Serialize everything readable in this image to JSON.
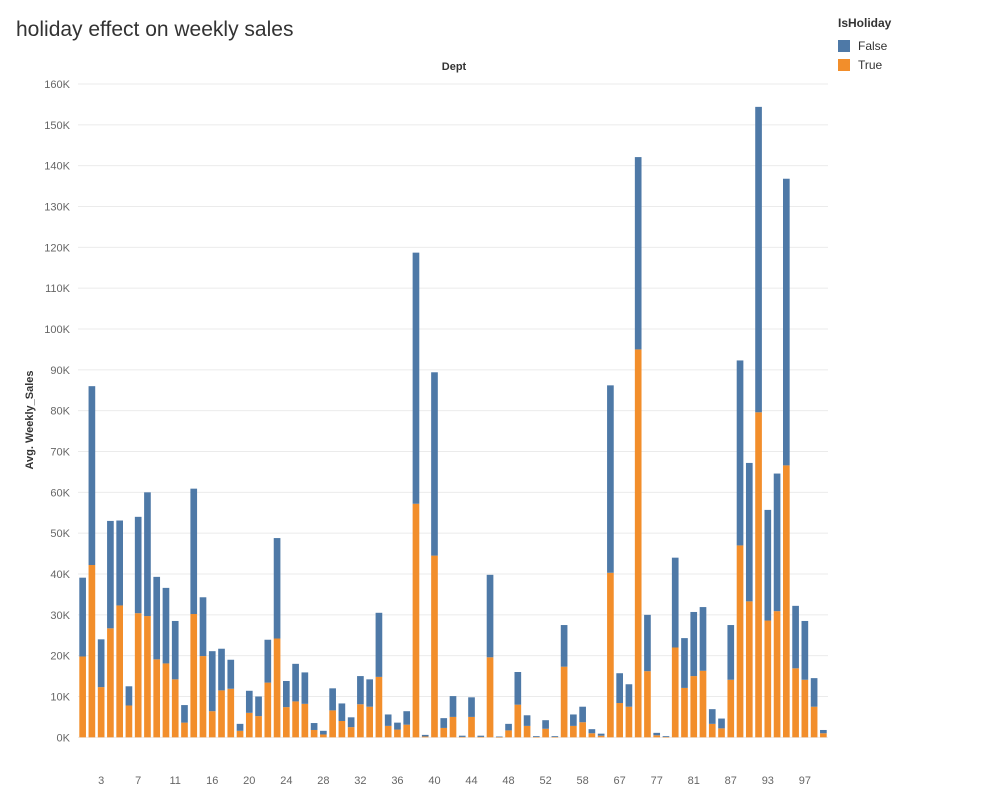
{
  "chart_data": {
    "type": "bar",
    "stacked": true,
    "title": "holiday effect on weekly sales",
    "header_label": "Dept",
    "ylabel": "Avg. Weekly_Sales",
    "ylim": [
      -8000,
      160000
    ],
    "yticks": [
      0,
      10000,
      20000,
      30000,
      40000,
      50000,
      60000,
      70000,
      80000,
      90000,
      100000,
      110000,
      120000,
      130000,
      140000,
      150000,
      160000
    ],
    "ytick_labels": [
      "0K",
      "10K",
      "20K",
      "30K",
      "40K",
      "50K",
      "60K",
      "70K",
      "80K",
      "90K",
      "100K",
      "110K",
      "120K",
      "130K",
      "140K",
      "150K",
      "160K"
    ],
    "grid": true,
    "legend": {
      "title": "IsHoliday",
      "position": "top-right"
    },
    "x_labels": [
      {
        "index": 2,
        "label": "3"
      },
      {
        "index": 6,
        "label": "7"
      },
      {
        "index": 10,
        "label": "11"
      },
      {
        "index": 14,
        "label": "16"
      },
      {
        "index": 18,
        "label": "20"
      },
      {
        "index": 22,
        "label": "24"
      },
      {
        "index": 26,
        "label": "28"
      },
      {
        "index": 30,
        "label": "32"
      },
      {
        "index": 34,
        "label": "36"
      },
      {
        "index": 38,
        "label": "40"
      },
      {
        "index": 42,
        "label": "44"
      },
      {
        "index": 46,
        "label": "48"
      },
      {
        "index": 50,
        "label": "52"
      },
      {
        "index": 54,
        "label": "58"
      },
      {
        "index": 58,
        "label": "67"
      },
      {
        "index": 62,
        "label": "77"
      },
      {
        "index": 66,
        "label": "81"
      },
      {
        "index": 70,
        "label": "87"
      },
      {
        "index": 74,
        "label": "93"
      },
      {
        "index": 78,
        "label": "97"
      }
    ],
    "bar_count": 81,
    "series": [
      {
        "name": "True",
        "color": "#f28e2b",
        "values": [
          19800,
          42200,
          12300,
          26700,
          32300,
          7800,
          30400,
          29700,
          19100,
          18100,
          14200,
          3600,
          30200,
          19900,
          6400,
          11500,
          11900,
          1600,
          6000,
          5200,
          13400,
          24200,
          7400,
          8800,
          8200,
          1800,
          700,
          6600,
          4000,
          2500,
          8100,
          7500,
          14800,
          2800,
          1900,
          3100,
          57200,
          200,
          44500,
          2300,
          5000,
          100,
          5000,
          100,
          19600,
          50,
          1700,
          8000,
          2800,
          100,
          2100,
          100,
          17300,
          2800,
          3700,
          1000,
          400,
          40300,
          8400,
          7500,
          95000,
          16200,
          500,
          100,
          22000,
          12100,
          15000,
          16300,
          3300,
          2200,
          14100,
          47000,
          33300,
          79600,
          28600,
          30900,
          66600,
          16900,
          14100,
          7500,
          1000
        ]
      },
      {
        "name": "False",
        "color": "#4e79a7",
        "values": [
          19300,
          43800,
          11700,
          26300,
          20800,
          4700,
          23600,
          30300,
          20200,
          18500,
          14300,
          4300,
          30700,
          14400,
          14700,
          10200,
          7100,
          1700,
          5400,
          4800,
          10500,
          24600,
          6400,
          9200,
          7700,
          1700,
          900,
          5400,
          4300,
          2400,
          6900,
          6700,
          15700,
          2800,
          1700,
          3300,
          61500,
          400,
          44900,
          2400,
          5100,
          300,
          4800,
          300,
          20200,
          150,
          1600,
          8000,
          2600,
          200,
          2100,
          200,
          10200,
          2800,
          3800,
          1000,
          500,
          45900,
          7300,
          5500,
          47100,
          13800,
          600,
          200,
          22000,
          12200,
          15700,
          15600,
          3600,
          2400,
          13400,
          45300,
          33900,
          74800,
          27100,
          33700,
          70200,
          15300,
          14400,
          7000,
          800
        ]
      }
    ]
  }
}
